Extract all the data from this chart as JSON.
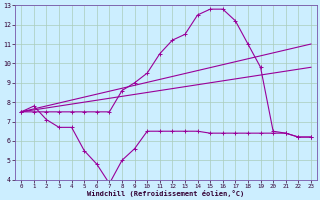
{
  "xlabel": "Windchill (Refroidissement éolien,°C)",
  "background_color": "#cceeff",
  "grid_color": "#aaccbb",
  "line_color": "#990099",
  "xlim": [
    -0.5,
    23.5
  ],
  "ylim": [
    4,
    13
  ],
  "yticks": [
    4,
    5,
    6,
    7,
    8,
    9,
    10,
    11,
    12,
    13
  ],
  "xticks": [
    0,
    1,
    2,
    3,
    4,
    5,
    6,
    7,
    8,
    9,
    10,
    11,
    12,
    13,
    14,
    15,
    16,
    17,
    18,
    19,
    20,
    21,
    22,
    23
  ],
  "line1_x": [
    0,
    1,
    2,
    3,
    4,
    5,
    6,
    7,
    8,
    9,
    10,
    11,
    12,
    13,
    14,
    15,
    16,
    17,
    18,
    19,
    20,
    21,
    22,
    23
  ],
  "line1_y": [
    7.5,
    7.8,
    7.1,
    6.7,
    6.7,
    5.5,
    4.8,
    3.8,
    5.0,
    5.6,
    6.5,
    6.5,
    6.5,
    6.5,
    6.5,
    6.4,
    6.4,
    6.4,
    6.4,
    6.4,
    6.4,
    6.4,
    6.2,
    6.2
  ],
  "line2_x": [
    0,
    1,
    2,
    3,
    4,
    5,
    6,
    7,
    8,
    9,
    10,
    11,
    12,
    13,
    14,
    15,
    16,
    17,
    18,
    19,
    20,
    21,
    22,
    23
  ],
  "line2_y": [
    7.5,
    7.5,
    7.5,
    7.5,
    7.5,
    7.5,
    7.5,
    7.5,
    8.6,
    9.0,
    9.5,
    10.5,
    11.2,
    11.5,
    12.5,
    12.8,
    12.8,
    12.2,
    11.0,
    9.8,
    6.5,
    6.4,
    6.2,
    6.2
  ],
  "line3_x": [
    0,
    23
  ],
  "line3_y": [
    7.5,
    11.0
  ],
  "line4_x": [
    0,
    23
  ],
  "line4_y": [
    7.5,
    9.8
  ]
}
